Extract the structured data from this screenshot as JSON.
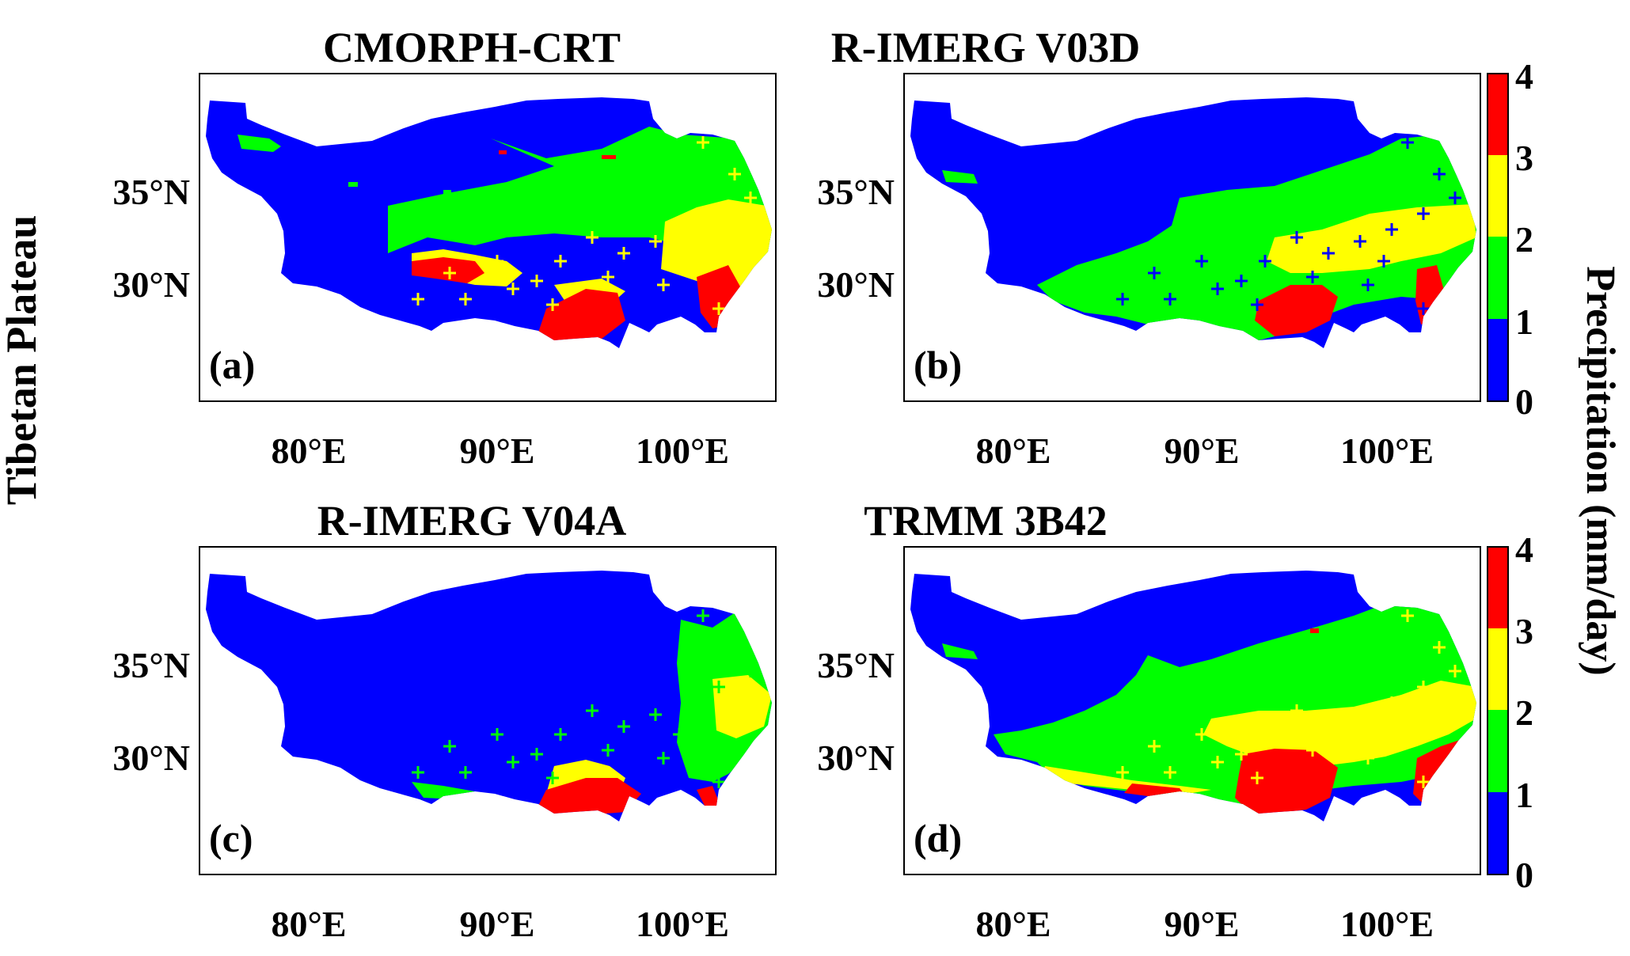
{
  "figure": {
    "row_label": "Tibetan Plateau",
    "colorbar": {
      "label": "Precipitation (mm/day)",
      "ticks": [
        "0",
        "1",
        "2",
        "3",
        "4"
      ],
      "classes": [
        {
          "range": "0-1",
          "color": "#0000ff"
        },
        {
          "range": "1-2",
          "color": "#00ff00"
        },
        {
          "range": "2-3",
          "color": "#ffff00"
        },
        {
          "range": "3-4",
          "color": "#ff0000"
        }
      ]
    },
    "axes": {
      "x_ticks": [
        "80°E",
        "90°E",
        "100°E"
      ],
      "y_ticks": [
        "35°N",
        "30°N"
      ]
    },
    "panels": [
      {
        "id": "a",
        "title": "CMORPH-CRT",
        "letter": "(a)"
      },
      {
        "id": "b",
        "title": "R-IMERG V03D",
        "letter": "(b)"
      },
      {
        "id": "c",
        "title": "R-IMERG V04A",
        "letter": "(c)"
      },
      {
        "id": "d",
        "title": "TRMM 3B42",
        "letter": "(d)"
      }
    ]
  }
}
